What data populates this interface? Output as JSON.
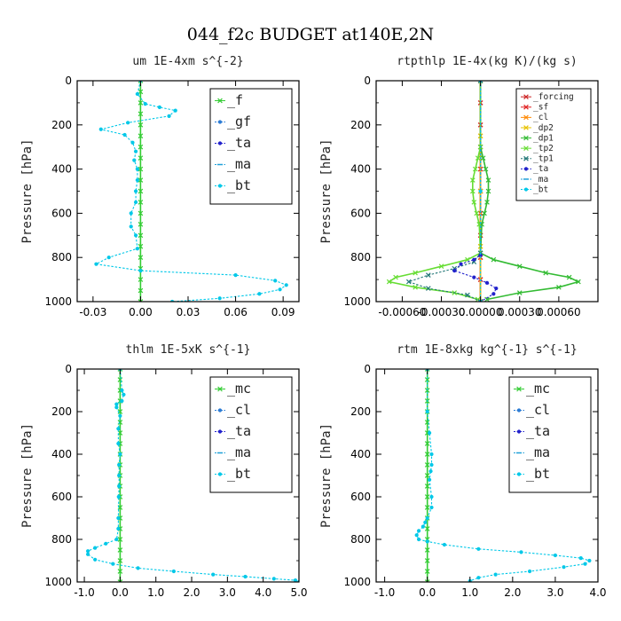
{
  "figure": {
    "title": "044_f2c  BUDGET at140E,2N"
  },
  "chart_data": [
    {
      "type": "line",
      "title": "um  1E-4xm s^{-2}",
      "ylabel": "Pressure [hPa]",
      "xlim": [
        -0.04,
        0.1
      ],
      "ylim": [
        1000,
        0
      ],
      "xticks": [
        -0.03,
        0.0,
        0.03,
        0.06,
        0.09
      ],
      "xtick_labels": [
        "-0.03",
        "0.00",
        "0.03",
        "0.06",
        "0.09"
      ],
      "yticks": [
        0,
        200,
        400,
        600,
        800,
        1000
      ],
      "ytick_labels": [
        "0",
        "200",
        "400",
        "600",
        "800",
        "1000"
      ],
      "legend": {
        "placement": "top-right",
        "size": "large"
      },
      "series": [
        {
          "name": "_f",
          "color": "#33cc33",
          "marker": "x",
          "line": "solid",
          "x": [
            0,
            0,
            0,
            0,
            0,
            0,
            0,
            0,
            0,
            0,
            0,
            0,
            0,
            0,
            0,
            0,
            0,
            0,
            0,
            0,
            0
          ],
          "y": [
            0,
            50,
            100,
            150,
            200,
            250,
            300,
            350,
            400,
            450,
            500,
            550,
            600,
            650,
            700,
            750,
            800,
            850,
            900,
            950,
            1000
          ]
        },
        {
          "name": "_gf",
          "color": "#2b7bd4",
          "marker": "dot",
          "line": "dashed",
          "points": []
        },
        {
          "name": "_ta",
          "color": "#2222cc",
          "marker": "dot",
          "line": "dashed",
          "points": []
        },
        {
          "name": "_ma",
          "color": "#1fa0d8",
          "marker": "dash",
          "line": "dashed",
          "points": []
        },
        {
          "name": "_bt",
          "color": "#00c8e8",
          "marker": "dot",
          "line": "dashed",
          "x": [
            0,
            -0.002,
            0.003,
            0.012,
            0.022,
            0.018,
            -0.008,
            -0.025,
            -0.01,
            -0.005,
            -0.003,
            -0.004,
            -0.002,
            -0.002,
            -0.003,
            -0.003,
            -0.006,
            -0.006,
            -0.003,
            -0.002,
            -0.02,
            -0.028,
            0.0,
            0.06,
            0.085,
            0.092,
            0.088,
            0.075,
            0.05,
            0.02
          ],
          "y": [
            0,
            60,
            105,
            120,
            135,
            160,
            190,
            220,
            245,
            280,
            320,
            360,
            400,
            450,
            500,
            550,
            600,
            660,
            700,
            760,
            800,
            830,
            860,
            880,
            905,
            925,
            945,
            965,
            985,
            1000
          ]
        }
      ]
    },
    {
      "type": "line",
      "title": "rtpthlp  1E-4x(kg K)/(kg s)",
      "ylabel": "Pressure [hPa]",
      "xlim": [
        -0.0008,
        0.0009
      ],
      "ylim": [
        1000,
        0
      ],
      "xticks": [
        -0.0006,
        -0.0003,
        0.0,
        0.0003,
        0.0006
      ],
      "xtick_labels": [
        "-0.00060",
        "-0.00030",
        "0.00000",
        "0.00030",
        "0.00060"
      ],
      "yticks": [
        0,
        200,
        400,
        600,
        800,
        1000
      ],
      "ytick_labels": [
        "0",
        "200",
        "400",
        "600",
        "800",
        "1000"
      ],
      "legend": {
        "placement": "top-right",
        "size": "small"
      },
      "series": [
        {
          "name": "_forcing",
          "color": "#cc2222",
          "marker": "x",
          "line": "solid",
          "x": [
            0,
            0,
            0,
            0,
            0,
            0,
            0,
            0,
            0,
            0,
            0
          ],
          "y": [
            0,
            100,
            200,
            300,
            400,
            500,
            600,
            700,
            800,
            900,
            1000
          ]
        },
        {
          "name": "_sf",
          "color": "#e02020",
          "marker": "x",
          "line": "solid",
          "x": [
            0,
            0,
            0,
            0,
            0,
            0,
            0,
            0,
            0,
            0,
            0
          ],
          "y": [
            0,
            100,
            200,
            300,
            400,
            500,
            600,
            700,
            800,
            900,
            1000
          ]
        },
        {
          "name": "_cl",
          "color": "#ff8800",
          "marker": "x",
          "line": "solid",
          "x": [
            0,
            0,
            0,
            0,
            0
          ],
          "y": [
            0,
            250,
            500,
            750,
            1000
          ]
        },
        {
          "name": "_dp2",
          "color": "#e8c200",
          "marker": "x",
          "line": "solid",
          "x": [
            0,
            0,
            0,
            0,
            0
          ],
          "y": [
            0,
            250,
            500,
            750,
            1000
          ]
        },
        {
          "name": "_dp1",
          "color": "#33bb33",
          "marker": "x",
          "line": "solid",
          "x": [
            0,
            0,
            2e-05,
            4e-05,
            6e-05,
            6e-05,
            5e-05,
            3e-05,
            1e-05,
            0.0,
            0.0001,
            0.0003,
            0.0005,
            0.00068,
            0.00075,
            0.0006,
            0.0003,
            5e-05
          ],
          "y": [
            0,
            300,
            350,
            400,
            450,
            500,
            550,
            600,
            650,
            780,
            810,
            840,
            870,
            890,
            910,
            935,
            960,
            990
          ]
        },
        {
          "name": "_tp2",
          "color": "#66dd33",
          "marker": "x",
          "line": "solid",
          "x": [
            0,
            0,
            -2e-05,
            -4e-05,
            -6e-05,
            -6e-05,
            -5e-05,
            -3e-05,
            -1e-05,
            0.0,
            -0.0001,
            -0.0003,
            -0.0005,
            -0.00065,
            -0.0007,
            -0.0005,
            -0.0002,
            -2e-05
          ],
          "y": [
            0,
            300,
            350,
            400,
            450,
            500,
            550,
            600,
            650,
            780,
            810,
            840,
            870,
            890,
            910,
            935,
            960,
            990
          ]
        },
        {
          "name": "_tp1",
          "color": "#227777",
          "marker": "x",
          "line": "dashed",
          "x": [
            0,
            0,
            -5e-05,
            -0.0002,
            -0.0004,
            -0.00055,
            -0.0004,
            -0.0001,
            0.0
          ],
          "y": [
            0,
            780,
            820,
            850,
            880,
            910,
            940,
            970,
            1000
          ]
        },
        {
          "name": "_ta",
          "color": "#2222cc",
          "marker": "dot",
          "line": "dashed",
          "x": [
            0,
            0,
            -5e-05,
            -0.00015,
            -0.0002,
            -5e-05,
            5e-05,
            0.00012,
            0.0001,
            0.0
          ],
          "y": [
            0,
            790,
            810,
            830,
            860,
            890,
            915,
            940,
            965,
            1000
          ]
        },
        {
          "name": "_ma",
          "color": "#1fa0d8",
          "marker": "dash",
          "line": "dashed",
          "points": []
        },
        {
          "name": "_bt",
          "color": "#00c8e8",
          "marker": "dot",
          "line": "dashed",
          "x": [
            0,
            0,
            0
          ],
          "y": [
            0,
            500,
            1000
          ]
        }
      ]
    },
    {
      "type": "line",
      "title": "thlm  1E-5xK s^{-1}",
      "ylabel": "Pressure [hPa]",
      "xlim": [
        -1.2,
        5.0
      ],
      "ylim": [
        1000,
        0
      ],
      "xticks": [
        -1.0,
        0.0,
        1.0,
        2.0,
        3.0,
        4.0,
        5.0
      ],
      "xtick_labels": [
        "-1.0",
        "0.0",
        "1.0",
        "2.0",
        "3.0",
        "4.0",
        "5.0"
      ],
      "yticks": [
        0,
        200,
        400,
        600,
        800,
        1000
      ],
      "ytick_labels": [
        "0",
        "200",
        "400",
        "600",
        "800",
        "1000"
      ],
      "legend": {
        "placement": "top-right",
        "size": "large"
      },
      "series": [
        {
          "name": "_mc",
          "color": "#33cc33",
          "marker": "x",
          "line": "solid",
          "x": [
            0,
            0,
            0,
            0,
            0,
            0,
            0,
            0,
            0,
            0,
            0,
            0,
            0,
            0,
            0,
            0,
            0,
            0,
            0,
            0,
            0
          ],
          "y": [
            0,
            50,
            100,
            150,
            200,
            250,
            300,
            350,
            400,
            450,
            500,
            550,
            600,
            650,
            700,
            750,
            800,
            850,
            900,
            950,
            1000
          ]
        },
        {
          "name": "_cl",
          "color": "#2b7bd4",
          "marker": "dot",
          "line": "dashed",
          "points": []
        },
        {
          "name": "_ta",
          "color": "#2222cc",
          "marker": "dot",
          "line": "dashed",
          "points": []
        },
        {
          "name": "_ma",
          "color": "#1fa0d8",
          "marker": "dash",
          "line": "dashed",
          "points": []
        },
        {
          "name": "_bt",
          "color": "#00c8e8",
          "marker": "dot",
          "line": "dashed",
          "x": [
            0,
            0.05,
            0.1,
            0.05,
            -0.1,
            -0.1,
            0.0,
            -0.05,
            -0.05,
            0.0,
            -0.03,
            -0.03,
            -0.03,
            -0.04,
            -0.05,
            -0.05,
            -0.1,
            -0.4,
            -0.7,
            -0.9,
            -0.9,
            -0.7,
            -0.2,
            0.5,
            1.5,
            2.6,
            3.5,
            4.3,
            4.9,
            5.0
          ],
          "y": [
            0,
            100,
            120,
            150,
            165,
            180,
            220,
            280,
            350,
            400,
            450,
            500,
            550,
            600,
            700,
            750,
            800,
            820,
            840,
            855,
            870,
            895,
            915,
            935,
            950,
            965,
            975,
            985,
            992,
            1000
          ]
        }
      ]
    },
    {
      "type": "line",
      "title": "rtm  1E-8xkg kg^{-1} s^{-1}",
      "ylabel": "Pressure [hPa]",
      "xlim": [
        -1.2,
        4.0
      ],
      "ylim": [
        1000,
        0
      ],
      "xticks": [
        -1.0,
        0.0,
        1.0,
        2.0,
        3.0,
        4.0
      ],
      "xtick_labels": [
        "-1.0",
        "0.0",
        "1.0",
        "2.0",
        "3.0",
        "4.0"
      ],
      "yticks": [
        0,
        200,
        400,
        600,
        800,
        1000
      ],
      "ytick_labels": [
        "0",
        "200",
        "400",
        "600",
        "800",
        "1000"
      ],
      "legend": {
        "placement": "top-right",
        "size": "large"
      },
      "series": [
        {
          "name": "_mc",
          "color": "#33cc33",
          "marker": "x",
          "line": "solid",
          "x": [
            0,
            0,
            0,
            0,
            0,
            0,
            0,
            0,
            0,
            0,
            0,
            0,
            0,
            0,
            0,
            0,
            0,
            0,
            0,
            0,
            0
          ],
          "y": [
            0,
            50,
            100,
            150,
            200,
            250,
            300,
            350,
            400,
            450,
            500,
            550,
            600,
            650,
            700,
            750,
            800,
            850,
            900,
            950,
            1000
          ]
        },
        {
          "name": "_cl",
          "color": "#2b7bd4",
          "marker": "dot",
          "line": "dashed",
          "points": []
        },
        {
          "name": "_ta",
          "color": "#2222cc",
          "marker": "dot",
          "line": "dashed",
          "points": []
        },
        {
          "name": "_ma",
          "color": "#1fa0d8",
          "marker": "dash",
          "line": "dashed",
          "points": []
        },
        {
          "name": "_bt",
          "color": "#00c8e8",
          "marker": "dot",
          "line": "dashed",
          "x": [
            0,
            0.0,
            0.05,
            0.1,
            0.1,
            0.08,
            0.05,
            0.1,
            0.1,
            0.0,
            -0.05,
            -0.1,
            -0.2,
            -0.25,
            -0.2,
            0.0,
            0.4,
            1.2,
            2.2,
            3.0,
            3.6,
            3.8,
            3.7,
            3.2,
            2.4,
            1.6,
            1.2,
            1.0
          ],
          "y": [
            0,
            200,
            300,
            400,
            450,
            480,
            520,
            600,
            650,
            700,
            720,
            740,
            760,
            780,
            800,
            810,
            825,
            845,
            860,
            875,
            888,
            900,
            915,
            930,
            950,
            965,
            980,
            995
          ]
        }
      ]
    }
  ]
}
